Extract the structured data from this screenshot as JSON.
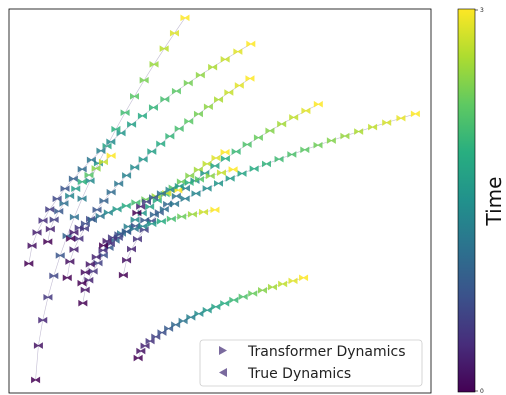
{
  "chart_data": {
    "type": "scatter",
    "title": "",
    "xlabel": "",
    "ylabel": "",
    "xlim": [
      0,
      1
    ],
    "ylim": [
      0,
      1
    ],
    "grid": false,
    "legend_placement": "bottom-right",
    "legend": [
      {
        "name": "Transformer Dynamics",
        "marker": "triangle-right"
      },
      {
        "name": "True Dynamics",
        "marker": "triangle-left"
      }
    ],
    "colorbar": {
      "label": "Time",
      "range": [
        0,
        3
      ],
      "ticks": [
        "0",
        "3"
      ],
      "colormap": "viridis"
    },
    "trajectories": [
      {
        "start": [
          0.063,
          0.034
        ],
        "end": [
          0.417,
          0.977
        ],
        "n": 20
      },
      {
        "start": [
          0.047,
          0.337
        ],
        "end": [
          0.573,
          0.909
        ],
        "n": 24
      },
      {
        "start": [
          0.138,
          0.3
        ],
        "end": [
          0.571,
          0.819
        ],
        "n": 24
      },
      {
        "start": [
          0.092,
          0.394
        ],
        "end": [
          0.242,
          0.618
        ],
        "n": 12
      },
      {
        "start": [
          0.175,
          0.234
        ],
        "end": [
          0.512,
          0.627
        ],
        "n": 22
      },
      {
        "start": [
          0.271,
          0.307
        ],
        "end": [
          0.733,
          0.752
        ],
        "n": 22
      },
      {
        "start": [
          0.173,
          0.286
        ],
        "end": [
          0.963,
          0.727
        ],
        "n": 32
      },
      {
        "start": [
          0.224,
          0.384
        ],
        "end": [
          0.488,
          0.477
        ],
        "n": 14
      },
      {
        "start": [
          0.306,
          0.091
        ],
        "end": [
          0.698,
          0.3
        ],
        "n": 22
      },
      {
        "start": [
          0.146,
          0.402
        ],
        "end": [
          0.4,
          0.528
        ],
        "n": 14
      },
      {
        "start": [
          0.303,
          0.469
        ],
        "end": [
          0.531,
          0.582
        ],
        "n": 12
      }
    ]
  }
}
